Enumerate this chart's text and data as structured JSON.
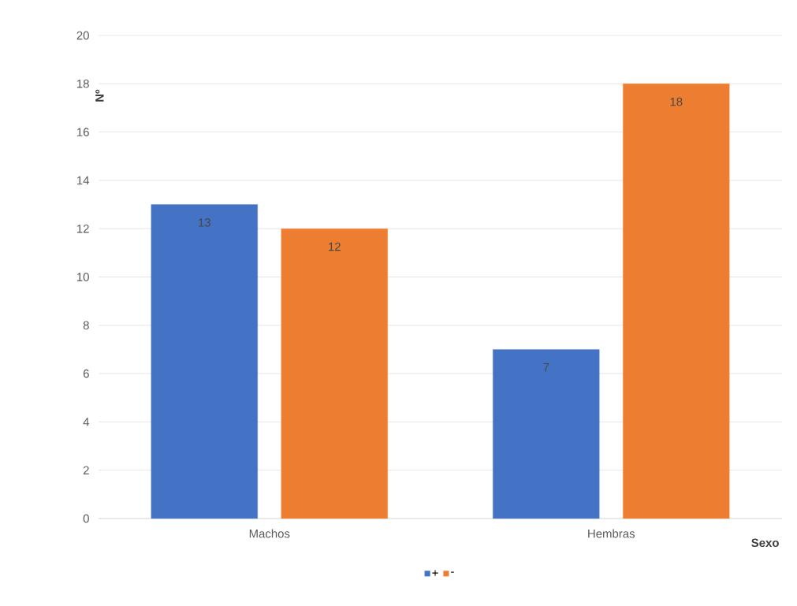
{
  "chart_data": {
    "type": "bar",
    "xlabel": "Sexo",
    "ylabel": "Nº",
    "categories": [
      "Machos",
      "Hembras"
    ],
    "series": [
      {
        "name": "+",
        "color": "#4472c4",
        "values": [
          13,
          7
        ]
      },
      {
        "name": "-",
        "color": "#ed7d31",
        "values": [
          12,
          18
        ]
      }
    ],
    "ylim": [
      0,
      20
    ],
    "yticks": [
      0,
      2,
      4,
      6,
      8,
      10,
      12,
      14,
      16,
      18,
      20
    ],
    "grid": "y",
    "legend": "bottom",
    "data_labels": true
  }
}
